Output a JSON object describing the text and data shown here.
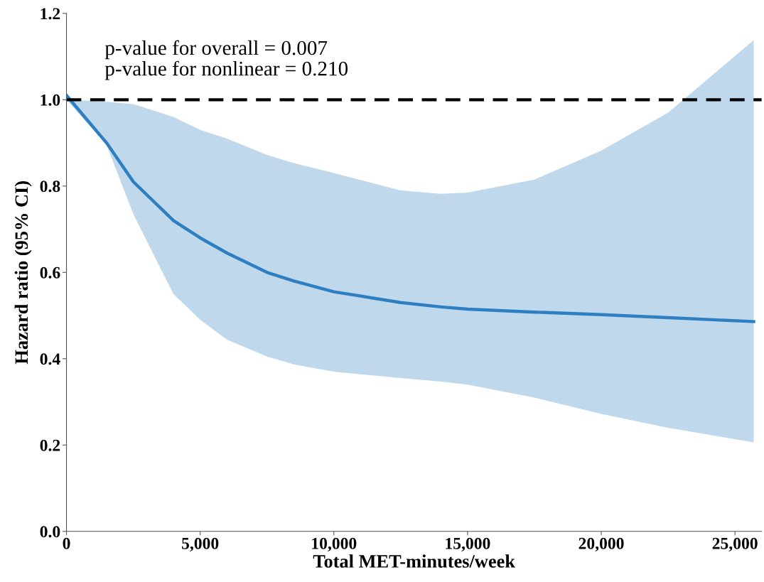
{
  "chart_data": {
    "type": "line",
    "xlabel": "Total MET-minutes/week",
    "ylabel": "Hazard ratio (95% CI)",
    "annotations": [
      "p-value for overall = 0.007",
      "p-value for nonlinear = 0.210"
    ],
    "x": [
      0,
      1500,
      2500,
      4000,
      5000,
      6000,
      7500,
      8500,
      10000,
      12500,
      14000,
      15000,
      17500,
      20000,
      22500,
      25700
    ],
    "series": [
      {
        "color": "#2e7fc1",
        "values": [
          1.01,
          0.9,
          0.81,
          0.72,
          0.68,
          0.645,
          0.6,
          0.58,
          0.555,
          0.53,
          0.52,
          0.515,
          0.508,
          0.502,
          0.495,
          0.486
        ],
        "lower": [
          1.0,
          0.895,
          0.735,
          0.55,
          0.49,
          0.444,
          0.405,
          0.387,
          0.37,
          0.355,
          0.347,
          0.34,
          0.31,
          0.272,
          0.24,
          0.206
        ],
        "upper": [
          1.0,
          0.995,
          0.99,
          0.96,
          0.93,
          0.91,
          0.872,
          0.853,
          0.83,
          0.79,
          0.782,
          0.785,
          0.815,
          0.882,
          0.97,
          1.138
        ]
      }
    ],
    "xlim": [
      0,
      26000
    ],
    "xticks": [
      0,
      {
        "value": 5000,
        "label": "5,000"
      },
      {
        "value": 10000,
        "label": "10,000"
      },
      {
        "value": 15000,
        "label": "15,000"
      },
      {
        "value": 20000,
        "label": "20,000"
      },
      {
        "value": 25000,
        "label": "25,000"
      }
    ],
    "ylim": [
      0,
      1.2
    ],
    "yticks": [
      {
        "value": 0,
        "label": "0.0"
      },
      {
        "value": 0.2,
        "label": "0.2"
      },
      {
        "value": 0.4,
        "label": "0.4"
      },
      {
        "value": 0.6,
        "label": "0.6"
      },
      {
        "value": 0.8,
        "label": "0.8"
      },
      {
        "value": 1.0,
        "label": "1.0"
      },
      {
        "value": 1.2,
        "label": "1.2"
      }
    ],
    "ref_lines": [
      {
        "axis": "y",
        "value": 1.0,
        "color": "#000000",
        "line_style": "dashed"
      }
    ],
    "grid": false,
    "legend": false
  }
}
